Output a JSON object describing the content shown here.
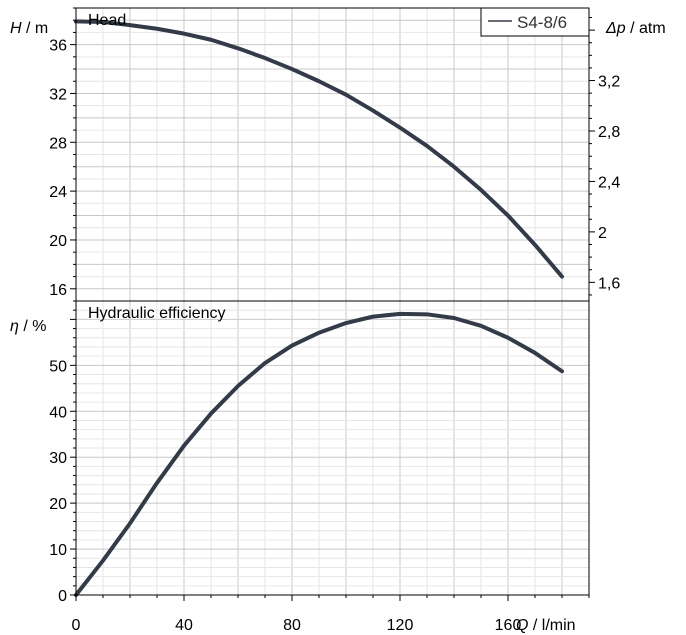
{
  "chart_data": [
    {
      "type": "line",
      "panel": "head",
      "title": "Head",
      "ylabel_symbol": "H",
      "ylabel_unit": " / m",
      "y2label_symbol": "Δp",
      "y2label_unit": " / atm",
      "xlim": [
        0,
        190
      ],
      "ylim": [
        15,
        39
      ],
      "y_ticks": [
        16,
        20,
        24,
        28,
        32,
        36
      ],
      "y2_ticks": [
        {
          "label": "1,6",
          "value": 1.6
        },
        {
          "label": "2",
          "value": 2.0
        },
        {
          "label": "2,4",
          "value": 2.4
        },
        {
          "label": "2,8",
          "value": 2.8
        },
        {
          "label": "3,2",
          "value": 3.2
        }
      ],
      "y2_per_y": 0.0968,
      "legend": {
        "position": "top-right",
        "entries": [
          "S4-8/6"
        ]
      },
      "series": [
        {
          "name": "S4-8/6",
          "color": "#333a48",
          "x": [
            0,
            10,
            20,
            30,
            40,
            50,
            60,
            70,
            80,
            90,
            100,
            110,
            120,
            130,
            140,
            150,
            160,
            170,
            180
          ],
          "y": [
            37.9,
            37.85,
            37.6,
            37.3,
            36.9,
            36.4,
            35.7,
            34.9,
            34.0,
            33.0,
            31.9,
            30.6,
            29.2,
            27.7,
            26.0,
            24.1,
            22.0,
            19.6,
            17.0
          ]
        }
      ]
    },
    {
      "type": "line",
      "panel": "efficiency",
      "title": "Hydraulic efficiency",
      "ylabel_symbol": "η",
      "ylabel_unit": " / %",
      "xlabel_symbol": "Q",
      "xlabel_unit": " / l/min",
      "xlim": [
        0,
        190
      ],
      "ylim": [
        0,
        64
      ],
      "x_ticks": [
        0,
        40,
        80,
        120,
        160
      ],
      "y_ticks": [
        0,
        10,
        20,
        30,
        40,
        50
      ],
      "series": [
        {
          "name": "S4-8/6",
          "color": "#333a48",
          "x": [
            0,
            10,
            20,
            30,
            40,
            50,
            60,
            70,
            80,
            90,
            100,
            110,
            120,
            130,
            140,
            150,
            160,
            170,
            180
          ],
          "y": [
            0,
            7.5,
            15.6,
            24.4,
            32.5,
            39.5,
            45.5,
            50.5,
            54.3,
            57.1,
            59.2,
            60.6,
            61.2,
            61.1,
            60.3,
            58.6,
            56.0,
            52.7,
            48.7
          ]
        }
      ]
    }
  ]
}
